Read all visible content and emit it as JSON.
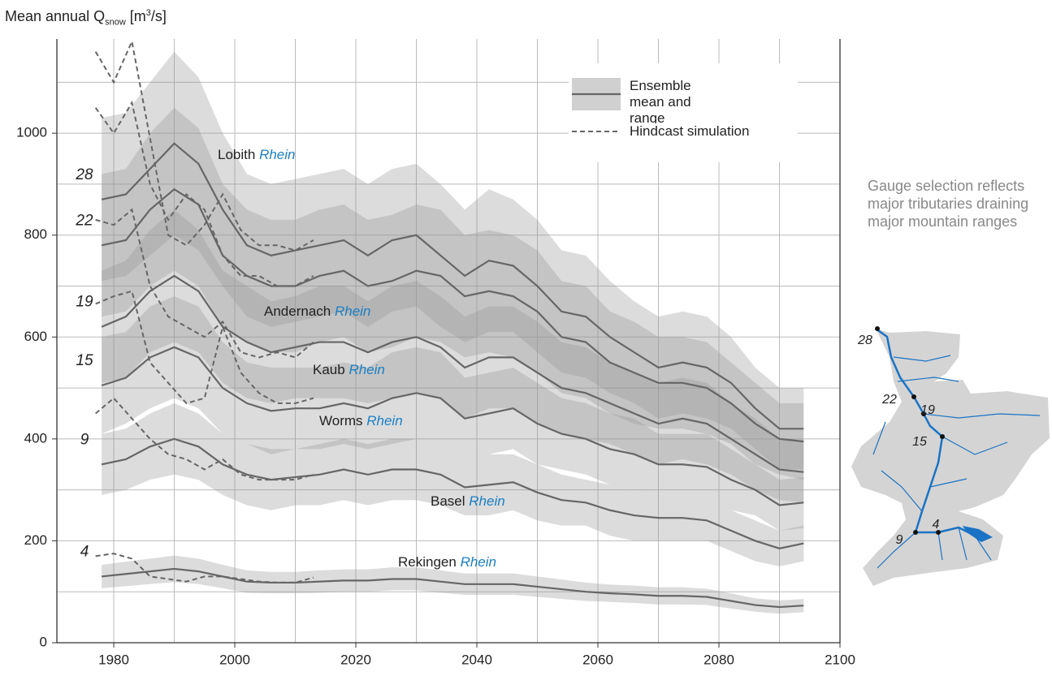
{
  "chart_data": {
    "type": "ensemble-line",
    "y_label": {
      "prefix": "Mean annual Q",
      "sub": "snow",
      "unit_pre": "[m",
      "sup": "3",
      "unit_post": "/s]"
    },
    "xlim": [
      1970.6,
      2100
    ],
    "xticks": [
      1980,
      2000,
      2020,
      2040,
      2060,
      2080,
      2100
    ],
    "minor_xticks": [
      1990,
      2010,
      2030,
      2050,
      2070,
      2090
    ],
    "ylim": [
      0,
      1185
    ],
    "yticks": [
      0,
      200,
      400,
      600,
      800,
      1000
    ],
    "minor_yticks": [
      100,
      300,
      500,
      700,
      900,
      1100
    ],
    "grid": true,
    "band_color": "rgba(150,150,150,0.33)",
    "line_color": "#666666",
    "legend": {
      "ensemble": "Ensemble mean and range",
      "hindcast": "Hindcast simulation"
    },
    "note": "Gauge selection reflects major tributaries draining major mountain ranges",
    "x": [
      1978,
      1982,
      1986,
      1990,
      1994,
      1998,
      2002,
      2006,
      2010,
      2014,
      2018,
      2022,
      2026,
      2030,
      2034,
      2038,
      2042,
      2046,
      2050,
      2054,
      2058,
      2062,
      2066,
      2070,
      2074,
      2078,
      2082,
      2086,
      2090,
      2094
    ],
    "hindcast_x": [
      1977,
      1980,
      1983,
      1986,
      1989,
      1992,
      1995,
      1998,
      2001,
      2004,
      2007,
      2010,
      2013
    ],
    "series": [
      {
        "name": "Lobith",
        "river": "Rhein",
        "gauge": "28",
        "mean": [
          870,
          880,
          930,
          980,
          940,
          850,
          780,
          760,
          770,
          780,
          790,
          760,
          790,
          800,
          760,
          720,
          750,
          740,
          700,
          650,
          640,
          600,
          570,
          540,
          550,
          540,
          510,
          460,
          420,
          420
        ],
        "lower": [
          710,
          720,
          760,
          800,
          770,
          700,
          640,
          620,
          630,
          640,
          650,
          620,
          650,
          660,
          620,
          590,
          610,
          610,
          570,
          530,
          520,
          490,
          470,
          440,
          450,
          440,
          420,
          380,
          340,
          340
        ],
        "upper": [
          1030,
          1040,
          1100,
          1160,
          1110,
          1000,
          920,
          900,
          910,
          920,
          930,
          900,
          930,
          940,
          900,
          850,
          890,
          870,
          830,
          770,
          760,
          710,
          670,
          640,
          650,
          640,
          600,
          540,
          500,
          500
        ],
        "hindcast": [
          1160,
          1100,
          1180,
          990,
          800,
          780,
          820,
          880,
          810,
          780,
          780,
          770,
          790
        ]
      },
      {
        "name": "Andernach",
        "river": "Rhein",
        "gauge": "22",
        "mean": [
          780,
          790,
          850,
          890,
          860,
          760,
          720,
          700,
          700,
          720,
          730,
          700,
          710,
          730,
          720,
          680,
          690,
          680,
          650,
          600,
          590,
          550,
          530,
          510,
          510,
          500,
          470,
          430,
          400,
          395
        ],
        "lower": [
          640,
          650,
          700,
          730,
          700,
          620,
          590,
          570,
          570,
          590,
          600,
          570,
          580,
          600,
          590,
          560,
          570,
          560,
          530,
          490,
          480,
          450,
          430,
          420,
          420,
          410,
          390,
          350,
          330,
          320
        ],
        "upper": [
          920,
          930,
          1000,
          1050,
          1010,
          900,
          850,
          830,
          830,
          850,
          860,
          830,
          840,
          860,
          850,
          800,
          810,
          800,
          770,
          710,
          700,
          650,
          630,
          600,
          600,
          590,
          550,
          510,
          470,
          470
        ],
        "hindcast": [
          1050,
          1000,
          1060,
          900,
          830,
          880,
          850,
          760,
          720,
          720,
          700,
          700,
          720
        ]
      },
      {
        "name": "Kaub",
        "river": "Rhein",
        "gauge": "19",
        "mean": [
          620,
          640,
          690,
          720,
          690,
          620,
          590,
          570,
          580,
          590,
          590,
          570,
          590,
          600,
          580,
          540,
          560,
          560,
          530,
          500,
          490,
          470,
          450,
          430,
          440,
          430,
          400,
          370,
          340,
          335
        ],
        "lower": [
          510,
          520,
          570,
          590,
          570,
          510,
          480,
          470,
          480,
          480,
          480,
          470,
          480,
          490,
          480,
          440,
          460,
          460,
          430,
          410,
          400,
          390,
          370,
          350,
          360,
          350,
          330,
          300,
          280,
          275
        ],
        "upper": [
          730,
          750,
          810,
          850,
          810,
          730,
          700,
          670,
          680,
          700,
          700,
          670,
          700,
          710,
          680,
          640,
          660,
          660,
          630,
          590,
          580,
          550,
          530,
          510,
          520,
          510,
          470,
          440,
          400,
          395
        ],
        "hindcast": [
          830,
          820,
          850,
          700,
          640,
          620,
          600,
          630,
          570,
          560,
          570,
          560,
          590
        ]
      },
      {
        "name": "Worms",
        "river": "Rhein",
        "gauge": "15",
        "mean": [
          505,
          520,
          560,
          580,
          560,
          500,
          470,
          455,
          460,
          460,
          470,
          460,
          480,
          490,
          480,
          440,
          450,
          460,
          430,
          410,
          400,
          380,
          370,
          350,
          350,
          345,
          320,
          300,
          270,
          275
        ],
        "lower": [
          410,
          430,
          460,
          480,
          460,
          410,
          390,
          370,
          380,
          380,
          390,
          380,
          390,
          400,
          390,
          360,
          370,
          380,
          350,
          340,
          330,
          310,
          300,
          290,
          290,
          280,
          260,
          250,
          220,
          225
        ],
        "upper": [
          600,
          610,
          660,
          680,
          660,
          590,
          550,
          540,
          540,
          540,
          550,
          540,
          570,
          580,
          570,
          520,
          530,
          540,
          510,
          480,
          470,
          450,
          440,
          410,
          410,
          410,
          380,
          350,
          320,
          325
        ],
        "hindcast": [
          665,
          680,
          690,
          550,
          510,
          470,
          480,
          620,
          530,
          490,
          470,
          470,
          480
        ]
      },
      {
        "name": "Basel",
        "river": "Rhein",
        "gauge": "9",
        "mean": [
          350,
          360,
          385,
          400,
          385,
          350,
          330,
          320,
          325,
          330,
          340,
          330,
          340,
          340,
          330,
          305,
          310,
          315,
          295,
          280,
          275,
          260,
          250,
          245,
          245,
          240,
          220,
          200,
          185,
          195
        ],
        "lower": [
          290,
          300,
          320,
          330,
          320,
          290,
          270,
          260,
          270,
          270,
          280,
          270,
          280,
          280,
          270,
          250,
          250,
          260,
          240,
          230,
          230,
          210,
          200,
          200,
          200,
          200,
          180,
          160,
          150,
          160
        ],
        "upper": [
          410,
          420,
          450,
          470,
          450,
          410,
          390,
          380,
          380,
          390,
          400,
          390,
          400,
          400,
          390,
          360,
          370,
          370,
          350,
          330,
          320,
          310,
          300,
          290,
          290,
          280,
          260,
          240,
          220,
          230
        ],
        "hindcast": [
          450,
          480,
          440,
          400,
          370,
          360,
          340,
          360,
          330,
          320,
          320,
          320,
          330
        ]
      },
      {
        "name": "Rekingen",
        "river": "Rhein",
        "gauge": "4",
        "mean": [
          130,
          135,
          140,
          145,
          140,
          130,
          120,
          118,
          118,
          120,
          122,
          122,
          125,
          125,
          120,
          115,
          115,
          115,
          110,
          105,
          100,
          97,
          95,
          92,
          92,
          90,
          82,
          74,
          70,
          73
        ],
        "lower": [
          107,
          111,
          115,
          119,
          115,
          107,
          98,
          97,
          97,
          98,
          100,
          100,
          103,
          103,
          98,
          94,
          94,
          94,
          90,
          86,
          82,
          80,
          78,
          75,
          75,
          74,
          67,
          61,
          57,
          60
        ],
        "upper": [
          153,
          159,
          165,
          171,
          165,
          153,
          142,
          139,
          139,
          142,
          144,
          144,
          148,
          148,
          142,
          136,
          136,
          136,
          130,
          124,
          118,
          114,
          112,
          109,
          109,
          106,
          97,
          87,
          83,
          86
        ],
        "hindcast": [
          170,
          175,
          165,
          130,
          125,
          120,
          130,
          130,
          125,
          120,
          118,
          118,
          128
        ]
      }
    ]
  }
}
